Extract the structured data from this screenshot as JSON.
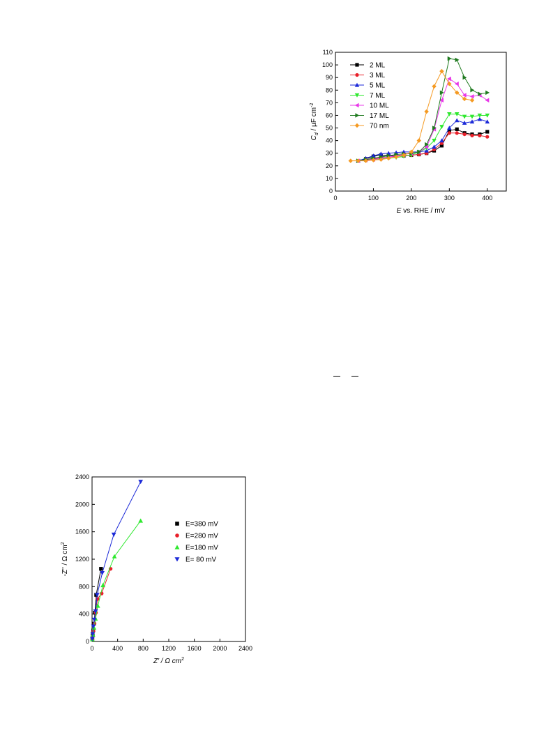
{
  "chart_data": [
    {
      "type": "line",
      "ylabel": "C",
      "ylabel_sub": "d",
      "ylabel_unit": " / µF cm",
      "ylabel_sup": "-2",
      "xlabel_italic": "E",
      "xlabel_rest": " vs. RHE / mV",
      "xlim": [
        0,
        450
      ],
      "ylim": [
        0,
        110
      ],
      "xticks": [
        0,
        100,
        200,
        300,
        400
      ],
      "yticks": [
        0,
        10,
        20,
        30,
        40,
        50,
        60,
        70,
        80,
        90,
        100,
        110
      ],
      "grid": false,
      "legend_position": "top-left",
      "series": [
        {
          "name": "2 ML",
          "color": "#000000",
          "marker": "square",
          "x": [
            60,
            80,
            100,
            120,
            140,
            160,
            180,
            200,
            220,
            240,
            260,
            280,
            300,
            320,
            340,
            360,
            380,
            400
          ],
          "y": [
            24,
            25.5,
            27.5,
            28.5,
            28,
            28,
            28,
            28.5,
            29,
            30,
            32,
            36,
            48,
            49,
            46,
            45,
            45,
            47
          ]
        },
        {
          "name": "3 ML",
          "color": "#e8202a",
          "marker": "circle",
          "x": [
            60,
            80,
            100,
            120,
            140,
            160,
            180,
            200,
            220,
            240,
            260,
            280,
            300,
            320,
            340,
            360,
            380,
            400
          ],
          "y": [
            24,
            24.5,
            25.5,
            26.5,
            27,
            27.5,
            28,
            28.5,
            29,
            30,
            33,
            38,
            46,
            46,
            45,
            44,
            44,
            43
          ]
        },
        {
          "name": "5 ML",
          "color": "#1c2ad8",
          "marker": "triangle-up",
          "x": [
            60,
            80,
            100,
            120,
            140,
            160,
            180,
            200,
            220,
            240,
            260,
            280,
            300,
            320,
            340,
            360,
            380,
            400
          ],
          "y": [
            24,
            26,
            28,
            29.5,
            30,
            30.5,
            31,
            31,
            31,
            32,
            35,
            40,
            50,
            56,
            54,
            55,
            57,
            55
          ]
        },
        {
          "name": "7 ML",
          "color": "#2ee82e",
          "marker": "triangle-down",
          "x": [
            60,
            80,
            100,
            120,
            140,
            160,
            180,
            200,
            220,
            240,
            260,
            280,
            300,
            320,
            340,
            360,
            380,
            400
          ],
          "y": [
            24,
            24.5,
            25,
            25.5,
            26,
            26.5,
            27.5,
            28.5,
            31,
            34,
            40,
            51,
            61,
            61,
            59,
            59,
            60,
            60
          ]
        },
        {
          "name": "10 ML",
          "color": "#e838e8",
          "marker": "triangle-left",
          "x": [
            60,
            80,
            100,
            120,
            140,
            160,
            180,
            200,
            220,
            240,
            260,
            280,
            300,
            320,
            340,
            360,
            380,
            400
          ],
          "y": [
            24,
            24.5,
            25,
            26,
            27,
            28,
            29,
            30,
            31,
            35,
            49,
            72,
            89,
            85,
            76,
            75,
            76,
            72
          ]
        },
        {
          "name": "17 ML",
          "color": "#1f7a1f",
          "marker": "triangle-right",
          "x": [
            60,
            80,
            100,
            120,
            140,
            160,
            180,
            200,
            220,
            240,
            260,
            280,
            300,
            320,
            340,
            360,
            380,
            400
          ],
          "y": [
            24,
            25,
            26,
            27,
            28,
            29,
            29.5,
            30,
            31,
            37,
            50,
            78,
            105,
            104,
            90,
            80,
            77,
            78
          ]
        },
        {
          "name": "70 nm",
          "color": "#f59a22",
          "marker": "diamond",
          "x": [
            40,
            60,
            80,
            100,
            120,
            140,
            160,
            180,
            200,
            220,
            240,
            260,
            280,
            300,
            320,
            340,
            360
          ],
          "y": [
            24,
            24,
            24,
            24.5,
            25,
            26,
            27,
            28.5,
            31,
            40,
            63,
            83,
            95,
            85,
            78,
            73,
            72
          ]
        }
      ]
    },
    {
      "type": "scatter",
      "xlabel": "Z' / Ω cm",
      "xlabel_sup": "2",
      "ylabel": "-Z'' / Ω cm",
      "ylabel_sup": "2",
      "xlim": [
        0,
        2400
      ],
      "ylim": [
        0,
        2400
      ],
      "xticks": [
        0,
        400,
        800,
        1200,
        1600,
        2000,
        2400
      ],
      "yticks": [
        0,
        400,
        800,
        1200,
        1600,
        2000,
        2400
      ],
      "grid": false,
      "legend_position": "right",
      "series": [
        {
          "name": "E=380 mV",
          "color": "#000000",
          "marker": "square",
          "connected": true,
          "x": [
            5,
            10,
            18,
            30,
            45,
            65,
            140
          ],
          "y": [
            40,
            90,
            160,
            260,
            420,
            680,
            1060
          ]
        },
        {
          "name": "E=280 mV",
          "color": "#e8202a",
          "marker": "circle",
          "connected": true,
          "x": [
            5,
            12,
            22,
            38,
            60,
            85,
            150,
            290
          ],
          "y": [
            30,
            80,
            150,
            260,
            420,
            620,
            700,
            1060
          ]
        },
        {
          "name": "E=180 mV",
          "color": "#2ee82e",
          "marker": "triangle-up",
          "connected": true,
          "x": [
            5,
            15,
            30,
            55,
            90,
            170,
            350,
            760
          ],
          "y": [
            30,
            100,
            200,
            330,
            520,
            820,
            1240,
            1760
          ]
        },
        {
          "name": "E=  80 mV",
          "color": "#1c2ad8",
          "marker": "triangle-down",
          "connected": true,
          "x": [
            4,
            10,
            20,
            35,
            55,
            80,
            160,
            340,
            760
          ],
          "y": [
            40,
            110,
            220,
            320,
            440,
            680,
            1000,
            1560,
            2330
          ]
        }
      ]
    }
  ]
}
